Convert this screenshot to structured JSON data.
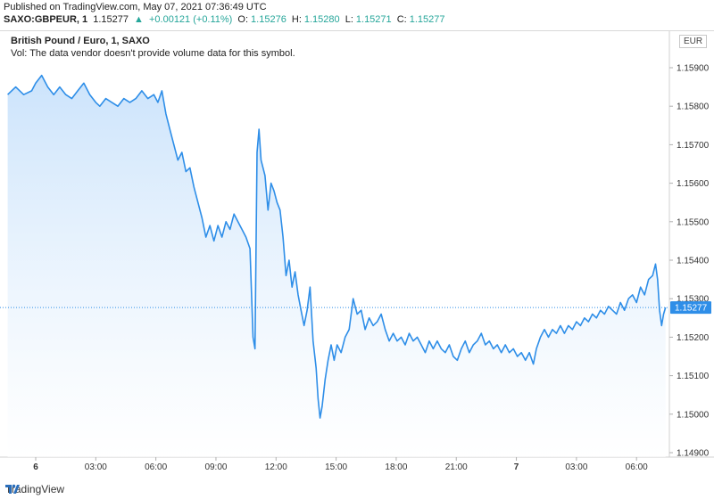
{
  "header": {
    "published": "Published on TradingView.com, May 07, 2021 07:36:49 UTC",
    "symbol": "SAXO:GBPEUR, 1",
    "last": "1.15277",
    "change": "+0.00121 (+0.11%)",
    "change_arrow": "▲",
    "o_label": "O:",
    "o_value": "1.15276",
    "h_label": "H:",
    "h_value": "1.15280",
    "l_label": "L:",
    "l_value": "1.15271",
    "c_label": "C:",
    "c_value": "1.15277"
  },
  "legend": {
    "title": "British Pound / Euro, 1, SAXO",
    "volume_note": "Vol: The data vendor doesn't provide volume data for this symbol."
  },
  "currency_badge": "EUR",
  "footer": {
    "brand": "TradingView"
  },
  "colors": {
    "line": "#2e8ee8",
    "area_top": "#c9e2fb",
    "area_bottom": "#ffffff",
    "price_badge": "#2e8ee8",
    "up": "#26a69a"
  },
  "chart_data": {
    "type": "area",
    "ylim": [
      1.1487,
      1.1597
    ],
    "y_ticks": [
      "1.15900",
      "1.15800",
      "1.15700",
      "1.15600",
      "1.15500",
      "1.15400",
      "1.15300",
      "1.15200",
      "1.15100",
      "1.15000",
      "1.14900"
    ],
    "y_tick_values": [
      1.159,
      1.158,
      1.157,
      1.156,
      1.155,
      1.154,
      1.153,
      1.152,
      1.151,
      1.15,
      1.149
    ],
    "x_ticks": [
      {
        "label": "6",
        "bold": true,
        "hour": 0
      },
      {
        "label": "03:00",
        "hour": 3
      },
      {
        "label": "06:00",
        "hour": 6
      },
      {
        "label": "09:00",
        "hour": 9
      },
      {
        "label": "12:00",
        "hour": 12
      },
      {
        "label": "15:00",
        "hour": 15
      },
      {
        "label": "18:00",
        "hour": 18
      },
      {
        "label": "21:00",
        "hour": 21
      },
      {
        "label": "7",
        "bold": true,
        "hour": 24
      },
      {
        "label": "03:00",
        "hour": 27
      },
      {
        "label": "06:00",
        "hour": 30
      }
    ],
    "current_price": 1.15277,
    "current_price_label": "1.15277",
    "points": [
      [
        -1.4,
        1.1583
      ],
      [
        -1.0,
        1.1585
      ],
      [
        -0.6,
        1.1583
      ],
      [
        -0.2,
        1.1584
      ],
      [
        0.0,
        1.1586
      ],
      [
        0.3,
        1.1588
      ],
      [
        0.6,
        1.1585
      ],
      [
        0.9,
        1.1583
      ],
      [
        1.2,
        1.1585
      ],
      [
        1.5,
        1.1583
      ],
      [
        1.8,
        1.1582
      ],
      [
        2.1,
        1.1584
      ],
      [
        2.4,
        1.1586
      ],
      [
        2.7,
        1.1583
      ],
      [
        3.0,
        1.1581
      ],
      [
        3.2,
        1.158
      ],
      [
        3.5,
        1.1582
      ],
      [
        3.8,
        1.1581
      ],
      [
        4.1,
        1.158
      ],
      [
        4.4,
        1.1582
      ],
      [
        4.7,
        1.1581
      ],
      [
        5.0,
        1.1582
      ],
      [
        5.3,
        1.1584
      ],
      [
        5.6,
        1.1582
      ],
      [
        5.9,
        1.1583
      ],
      [
        6.1,
        1.1581
      ],
      [
        6.3,
        1.1584
      ],
      [
        6.5,
        1.1578
      ],
      [
        6.7,
        1.1574
      ],
      [
        6.9,
        1.157
      ],
      [
        7.1,
        1.1566
      ],
      [
        7.3,
        1.1568
      ],
      [
        7.5,
        1.1563
      ],
      [
        7.7,
        1.1564
      ],
      [
        7.9,
        1.1559
      ],
      [
        8.1,
        1.1555
      ],
      [
        8.3,
        1.1551
      ],
      [
        8.5,
        1.1546
      ],
      [
        8.7,
        1.1549
      ],
      [
        8.9,
        1.1545
      ],
      [
        9.1,
        1.1549
      ],
      [
        9.3,
        1.1546
      ],
      [
        9.5,
        1.155
      ],
      [
        9.7,
        1.1548
      ],
      [
        9.9,
        1.1552
      ],
      [
        10.1,
        1.155
      ],
      [
        10.3,
        1.1548
      ],
      [
        10.5,
        1.1546
      ],
      [
        10.7,
        1.1543
      ],
      [
        10.85,
        1.152
      ],
      [
        10.95,
        1.1517
      ],
      [
        11.05,
        1.1568
      ],
      [
        11.15,
        1.1574
      ],
      [
        11.25,
        1.1566
      ],
      [
        11.45,
        1.1562
      ],
      [
        11.6,
        1.1553
      ],
      [
        11.75,
        1.156
      ],
      [
        11.9,
        1.1558
      ],
      [
        12.05,
        1.1555
      ],
      [
        12.2,
        1.1553
      ],
      [
        12.35,
        1.1546
      ],
      [
        12.5,
        1.1536
      ],
      [
        12.65,
        1.154
      ],
      [
        12.8,
        1.1533
      ],
      [
        12.95,
        1.1537
      ],
      [
        13.1,
        1.1531
      ],
      [
        13.25,
        1.1527
      ],
      [
        13.4,
        1.1523
      ],
      [
        13.55,
        1.1527
      ],
      [
        13.7,
        1.1533
      ],
      [
        13.85,
        1.1519
      ],
      [
        14.0,
        1.1512
      ],
      [
        14.1,
        1.1504
      ],
      [
        14.2,
        1.1499
      ],
      [
        14.3,
        1.1502
      ],
      [
        14.45,
        1.1509
      ],
      [
        14.6,
        1.1514
      ],
      [
        14.75,
        1.1518
      ],
      [
        14.9,
        1.1514
      ],
      [
        15.05,
        1.1518
      ],
      [
        15.25,
        1.1516
      ],
      [
        15.45,
        1.152
      ],
      [
        15.65,
        1.1522
      ],
      [
        15.85,
        1.153
      ],
      [
        16.05,
        1.1526
      ],
      [
        16.25,
        1.1527
      ],
      [
        16.45,
        1.1522
      ],
      [
        16.65,
        1.1525
      ],
      [
        16.85,
        1.1523
      ],
      [
        17.05,
        1.1524
      ],
      [
        17.25,
        1.1526
      ],
      [
        17.45,
        1.1522
      ],
      [
        17.65,
        1.1519
      ],
      [
        17.85,
        1.1521
      ],
      [
        18.05,
        1.1519
      ],
      [
        18.25,
        1.152
      ],
      [
        18.45,
        1.1518
      ],
      [
        18.65,
        1.1521
      ],
      [
        18.85,
        1.1519
      ],
      [
        19.05,
        1.152
      ],
      [
        19.25,
        1.1518
      ],
      [
        19.45,
        1.1516
      ],
      [
        19.65,
        1.1519
      ],
      [
        19.85,
        1.1517
      ],
      [
        20.05,
        1.1519
      ],
      [
        20.25,
        1.1517
      ],
      [
        20.45,
        1.1516
      ],
      [
        20.65,
        1.1518
      ],
      [
        20.85,
        1.1515
      ],
      [
        21.05,
        1.1514
      ],
      [
        21.25,
        1.1517
      ],
      [
        21.45,
        1.1519
      ],
      [
        21.65,
        1.1516
      ],
      [
        21.85,
        1.1518
      ],
      [
        22.05,
        1.1519
      ],
      [
        22.25,
        1.1521
      ],
      [
        22.45,
        1.1518
      ],
      [
        22.65,
        1.1519
      ],
      [
        22.85,
        1.1517
      ],
      [
        23.05,
        1.1518
      ],
      [
        23.25,
        1.1516
      ],
      [
        23.45,
        1.1518
      ],
      [
        23.65,
        1.1516
      ],
      [
        23.85,
        1.1517
      ],
      [
        24.05,
        1.1515
      ],
      [
        24.25,
        1.1516
      ],
      [
        24.45,
        1.1514
      ],
      [
        24.65,
        1.1516
      ],
      [
        24.85,
        1.1513
      ],
      [
        25.0,
        1.1517
      ],
      [
        25.2,
        1.152
      ],
      [
        25.4,
        1.1522
      ],
      [
        25.6,
        1.152
      ],
      [
        25.8,
        1.1522
      ],
      [
        26.0,
        1.1521
      ],
      [
        26.2,
        1.1523
      ],
      [
        26.4,
        1.1521
      ],
      [
        26.6,
        1.1523
      ],
      [
        26.8,
        1.1522
      ],
      [
        27.0,
        1.1524
      ],
      [
        27.2,
        1.1523
      ],
      [
        27.4,
        1.1525
      ],
      [
        27.6,
        1.1524
      ],
      [
        27.8,
        1.1526
      ],
      [
        28.0,
        1.1525
      ],
      [
        28.2,
        1.1527
      ],
      [
        28.4,
        1.1526
      ],
      [
        28.6,
        1.1528
      ],
      [
        28.8,
        1.1527
      ],
      [
        29.0,
        1.1526
      ],
      [
        29.2,
        1.1529
      ],
      [
        29.4,
        1.1527
      ],
      [
        29.6,
        1.153
      ],
      [
        29.8,
        1.1531
      ],
      [
        30.0,
        1.1529
      ],
      [
        30.2,
        1.1533
      ],
      [
        30.4,
        1.1531
      ],
      [
        30.6,
        1.1535
      ],
      [
        30.8,
        1.1536
      ],
      [
        30.95,
        1.1539
      ],
      [
        31.05,
        1.1535
      ],
      [
        31.15,
        1.1527
      ],
      [
        31.25,
        1.1523
      ],
      [
        31.35,
        1.1526
      ],
      [
        31.45,
        1.15277
      ]
    ]
  }
}
